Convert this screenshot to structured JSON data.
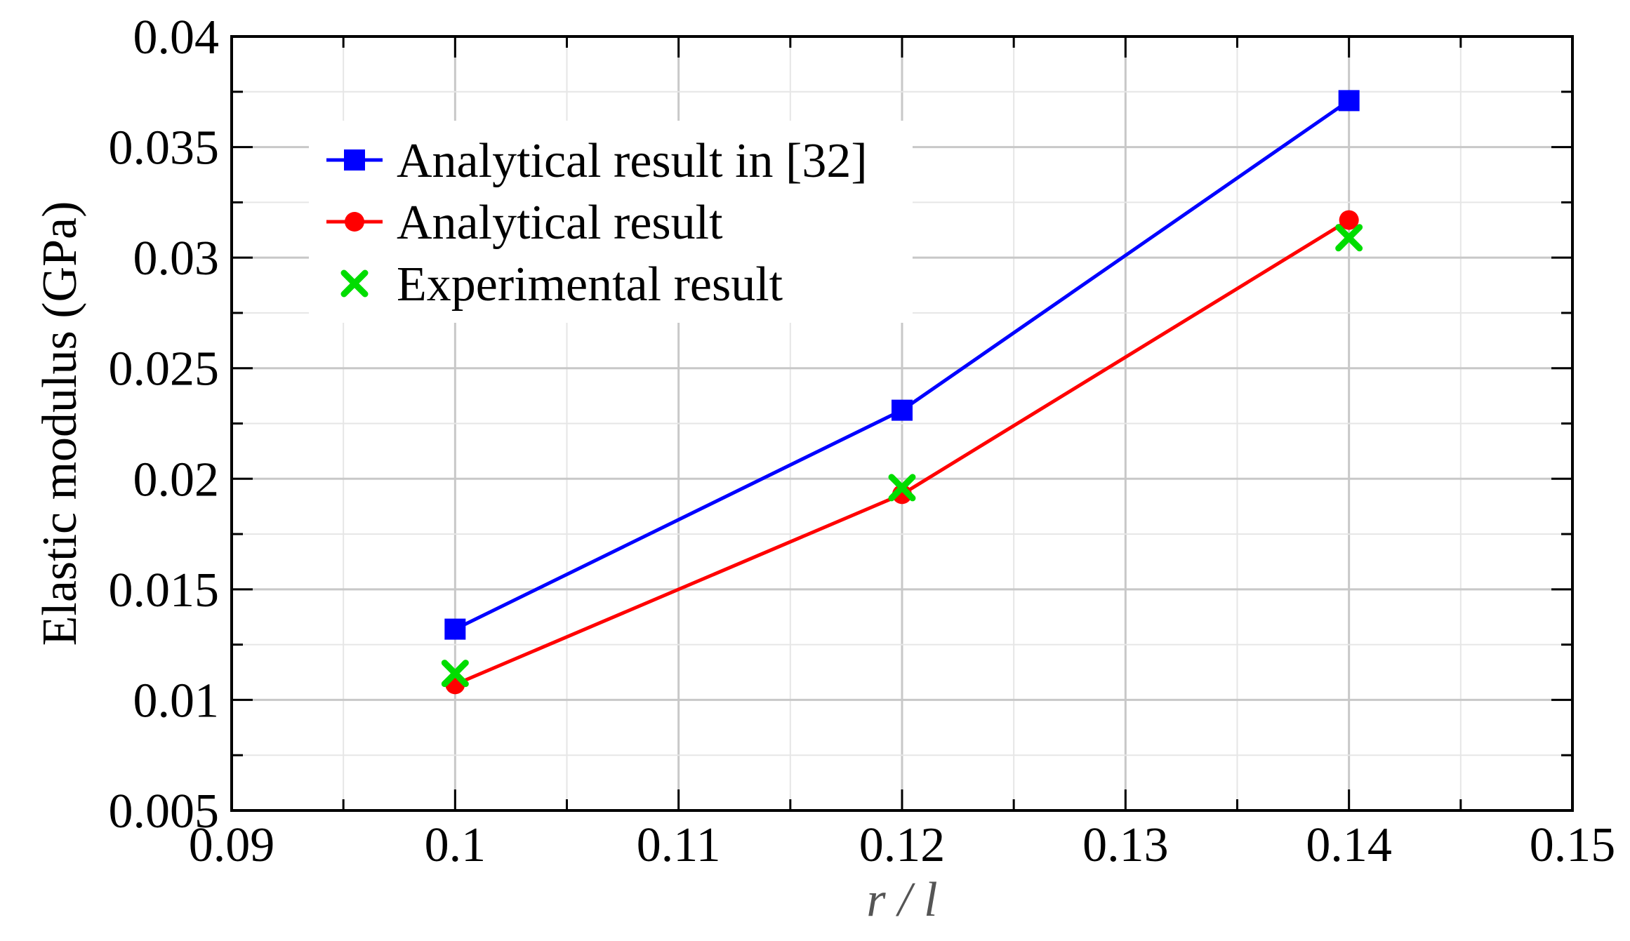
{
  "chart_data": {
    "type": "line",
    "xlabel": "r / l",
    "ylabel": "Elastic modulus (GPa)",
    "xlim": [
      0.09,
      0.15
    ],
    "ylim": [
      0.005,
      0.04
    ],
    "xticks": [
      0.09,
      0.1,
      0.11,
      0.12,
      0.13,
      0.14,
      0.15
    ],
    "yticks": [
      0.005,
      0.01,
      0.015,
      0.02,
      0.025,
      0.03,
      0.035,
      0.04
    ],
    "x_tick_labels": [
      "0.09",
      "0.1",
      "0.11",
      "0.12",
      "0.13",
      "0.14",
      "0.15"
    ],
    "y_tick_labels": [
      "0.005",
      "0.01",
      "0.015",
      "0.02",
      "0.025",
      "0.03",
      "0.035",
      "0.04"
    ],
    "grid": true,
    "legend_position": "top-left",
    "series": [
      {
        "name": "Analytical result in [32]",
        "color": "#0000ff",
        "marker": "square",
        "line": true,
        "x": [
          0.1,
          0.12,
          0.14
        ],
        "y": [
          0.0132,
          0.0231,
          0.0371
        ]
      },
      {
        "name": "Analytical result",
        "color": "#ff0000",
        "marker": "circle",
        "line": true,
        "x": [
          0.1,
          0.12,
          0.14
        ],
        "y": [
          0.0107,
          0.0193,
          0.0317
        ]
      },
      {
        "name": "Experimental result",
        "color": "#00dd00",
        "marker": "x",
        "line": false,
        "x": [
          0.1,
          0.12,
          0.14
        ],
        "y": [
          0.0112,
          0.0196,
          0.0309
        ]
      }
    ]
  }
}
